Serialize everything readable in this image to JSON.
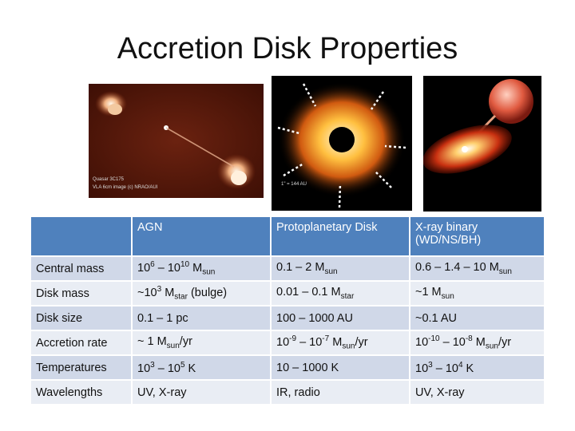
{
  "slide": {
    "title": "Accretion Disk Properties"
  },
  "images": {
    "agn_caption_1": "Quasar 3C175",
    "agn_caption_2": "VLA 6cm image (c) NRAO/AUI",
    "disk_scale_label": "1\" = 144 AU"
  },
  "table": {
    "headers": [
      "",
      "AGN",
      "Protoplanetary Disk",
      "X-ray binary (WD/NS/BH)"
    ],
    "rows": [
      {
        "label": "Central mass",
        "agn": {
          "a": "10",
          "a_sup": "6",
          "b": " – 10",
          "b_sup": "10",
          "c": " M",
          "c_sub": "sun"
        },
        "ppd": {
          "a": "0.1 – 2 M",
          "a_sub": "sun"
        },
        "xrb": {
          "a": "0.6 – 1.4 – 10 M",
          "a_sub": "sun"
        }
      },
      {
        "label": "Disk mass",
        "agn": {
          "a": "~10",
          "a_sup": "3",
          "b": " M",
          "b_sub": "star",
          "c": " (bulge)"
        },
        "ppd": {
          "a": "0.01 – 0.1 M",
          "a_sub": "star"
        },
        "xrb": {
          "a": "~1 M",
          "a_sub": "sun"
        }
      },
      {
        "label": "Disk size",
        "agn": {
          "a": "0.1 – 1 pc"
        },
        "ppd": {
          "a": "100 – 1000 AU"
        },
        "xrb": {
          "a": "~0.1 AU"
        }
      },
      {
        "label": "Accretion rate",
        "agn": {
          "a": "~ 1 M",
          "a_sub": "sun",
          "b": "/yr"
        },
        "ppd": {
          "a": "10",
          "a_sup": "-9",
          "b": " – 10",
          "b_sup": "-7",
          "c": " M",
          "c_sub": "sun",
          "d": "/yr"
        },
        "xrb": {
          "a": "10",
          "a_sup": "-10",
          "b": " – 10",
          "b_sup": "-8",
          "c": " M",
          "c_sub": "sun",
          "d": "/yr"
        }
      },
      {
        "label": "Temperatures",
        "agn": {
          "a": "10",
          "a_sup": "3",
          "b": " – 10",
          "b_sup": "5",
          "c": " K"
        },
        "ppd": {
          "a": "10 – 1000 K"
        },
        "xrb": {
          "a": "10",
          "a_sup": "3",
          "b": " – 10",
          "b_sup": "4",
          "c": " K"
        }
      },
      {
        "label": "Wavelengths",
        "agn": {
          "a": "UV, X-ray"
        },
        "ppd": {
          "a": "IR, radio"
        },
        "xrb": {
          "a": "UV, X-ray"
        }
      }
    ]
  }
}
